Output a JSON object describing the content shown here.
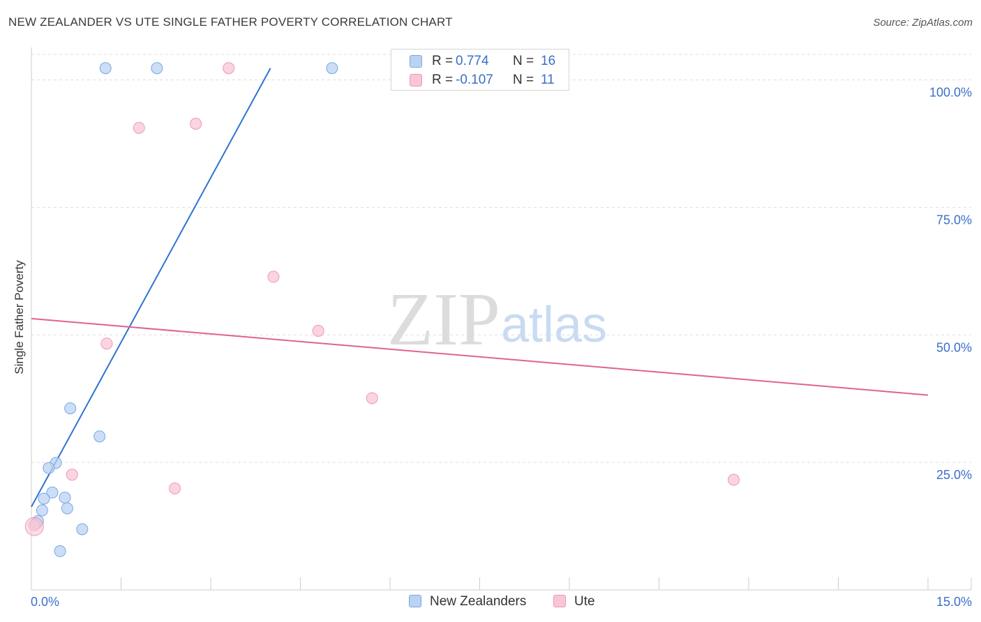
{
  "title": "NEW ZEALANDER VS UTE SINGLE FATHER POVERTY CORRELATION CHART",
  "source": "Source: ZipAtlas.com",
  "watermark": {
    "zip": "ZIP",
    "atlas": "atlas"
  },
  "legend_stats": [
    {
      "r_label": "R =",
      "r_value": "0.774",
      "n_label": "N =",
      "n_value": "16"
    },
    {
      "r_label": "R =",
      "r_value": "-0.107",
      "n_label": "N =",
      "n_value": "11"
    }
  ],
  "colors": {
    "blue_fill": "#b9d3f3",
    "blue_stroke": "#7aa6e0",
    "blue_line": "#2f73d0",
    "pink_fill": "#f9c6d6",
    "pink_stroke": "#ec99b4",
    "pink_line": "#e0628e",
    "tick_text": "#3b6fc6",
    "grid": "#dddddd"
  },
  "chart_data": {
    "type": "scatter",
    "title": "NEW ZEALANDER VS UTE SINGLE FATHER POVERTY CORRELATION CHART",
    "xlabel": "",
    "ylabel": "Single Father Poverty",
    "xlim": [
      0,
      15
    ],
    "ylim": [
      0,
      105
    ],
    "x_tick_labels": [
      "0.0%",
      "15.0%"
    ],
    "y_ticks": [
      25,
      50,
      75,
      100
    ],
    "y_tick_labels": [
      "25.0%",
      "50.0%",
      "75.0%",
      "100.0%"
    ],
    "legend_position": "bottom",
    "series": [
      {
        "name": "New Zealanders",
        "color": "blue",
        "points": [
          {
            "x": 1.24,
            "y": 102.3
          },
          {
            "x": 2.1,
            "y": 102.3
          },
          {
            "x": 5.03,
            "y": 102.3
          },
          {
            "x": 0.65,
            "y": 35.6
          },
          {
            "x": 1.14,
            "y": 30.1
          },
          {
            "x": 0.41,
            "y": 24.9
          },
          {
            "x": 0.29,
            "y": 23.9
          },
          {
            "x": 0.35,
            "y": 19.1
          },
          {
            "x": 0.21,
            "y": 17.9
          },
          {
            "x": 0.56,
            "y": 18.1
          },
          {
            "x": 0.6,
            "y": 16.0
          },
          {
            "x": 0.18,
            "y": 15.6
          },
          {
            "x": 0.11,
            "y": 13.5
          },
          {
            "x": 0.08,
            "y": 13.0
          },
          {
            "x": 0.85,
            "y": 11.9
          },
          {
            "x": 0.48,
            "y": 7.6
          }
        ],
        "trend": {
          "x": [
            0.0,
            4.0
          ],
          "y": [
            16.3,
            102.3
          ]
        }
      },
      {
        "name": "Ute",
        "color": "pink",
        "points": [
          {
            "x": 3.3,
            "y": 102.3
          },
          {
            "x": 1.8,
            "y": 90.6
          },
          {
            "x": 2.75,
            "y": 91.4
          },
          {
            "x": 4.05,
            "y": 61.4
          },
          {
            "x": 4.8,
            "y": 50.8
          },
          {
            "x": 1.26,
            "y": 48.3
          },
          {
            "x": 5.7,
            "y": 37.6
          },
          {
            "x": 0.68,
            "y": 22.6
          },
          {
            "x": 2.4,
            "y": 19.9
          },
          {
            "x": 11.75,
            "y": 21.6
          },
          {
            "x": 0.05,
            "y": 12.7
          }
        ],
        "trend": {
          "x": [
            0.0,
            15.0
          ],
          "y": [
            53.2,
            38.2
          ]
        }
      }
    ]
  }
}
